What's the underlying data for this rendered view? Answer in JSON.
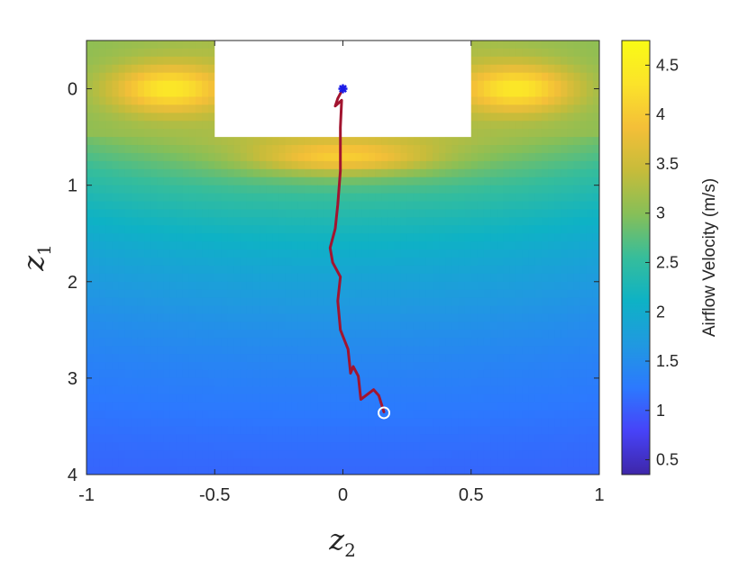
{
  "chart_data": {
    "type": "heatmap",
    "x_axis": {
      "label_symbol": "z",
      "label_subscript": "2",
      "range": [
        -1,
        1
      ],
      "ticks": [
        -1,
        -0.5,
        0,
        0.5,
        1
      ],
      "tick_labels": [
        "-1",
        "-0.5",
        "0",
        "0.5",
        "1"
      ]
    },
    "y_axis": {
      "label_symbol": "z",
      "label_subscript": "1",
      "range": [
        -0.5,
        4
      ],
      "reversed": true,
      "ticks": [
        0,
        1,
        2,
        3,
        4
      ],
      "tick_labels": [
        "0",
        "1",
        "2",
        "3",
        "4"
      ]
    },
    "colorbar": {
      "label": "Airflow Velocity (m/s)",
      "range": [
        0.35,
        4.75
      ],
      "ticks": [
        0.5,
        1,
        1.5,
        2,
        2.5,
        3,
        3.5,
        4,
        4.5
      ],
      "tick_labels": [
        "0.5",
        "1",
        "1.5",
        "2",
        "2.5",
        "3",
        "3.5",
        "4",
        "4.5"
      ],
      "colormap": "parula",
      "colormap_stops": [
        "#3e26a8",
        "#4743f8",
        "#2c79fe",
        "#2099e0",
        "#0eb2c5",
        "#36bd9b",
        "#86bf58",
        "#c6bc3a",
        "#f4bf38",
        "#fbe32a",
        "#f9fb15"
      ]
    },
    "obstacle": {
      "z2_range": [
        -0.5,
        0.5
      ],
      "z1_range": [
        -0.5,
        0.5
      ],
      "color": "#ffffff"
    },
    "trajectory": {
      "color": "#a2142f",
      "points": [
        [
          0.0,
          0.0
        ],
        [
          -0.02,
          0.1
        ],
        [
          -0.03,
          0.18
        ],
        [
          -0.005,
          0.12
        ],
        [
          -0.01,
          0.4
        ],
        [
          -0.01,
          0.85
        ],
        [
          -0.02,
          1.2
        ],
        [
          -0.03,
          1.45
        ],
        [
          -0.05,
          1.65
        ],
        [
          -0.04,
          1.8
        ],
        [
          -0.01,
          1.95
        ],
        [
          -0.02,
          2.2
        ],
        [
          -0.01,
          2.5
        ],
        [
          0.02,
          2.7
        ],
        [
          0.03,
          2.95
        ],
        [
          0.04,
          2.88
        ],
        [
          0.06,
          2.98
        ],
        [
          0.07,
          3.22
        ],
        [
          0.12,
          3.12
        ],
        [
          0.14,
          3.18
        ],
        [
          0.16,
          3.35
        ]
      ]
    },
    "start_marker": {
      "z2": 0.16,
      "z1": 3.36,
      "shape": "circle",
      "color": "#ffffff"
    },
    "goal_marker": {
      "z2": 0.0,
      "z1": 0.0,
      "shape": "asterisk",
      "color": "#1a1ae6"
    },
    "field_model": "speed decays with distance below the obstacle; peaks of about 4.5 m/s at the obstacle corners"
  }
}
